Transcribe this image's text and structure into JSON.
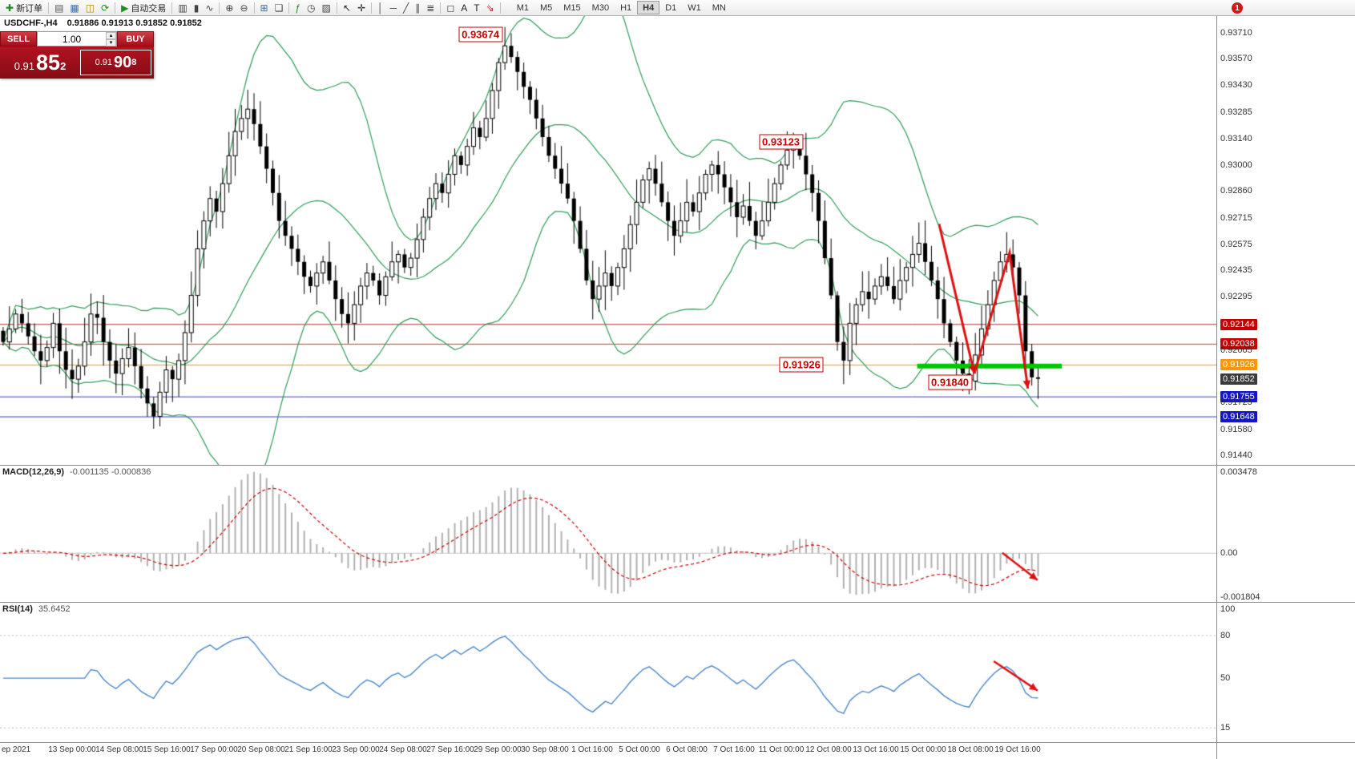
{
  "toolbar": {
    "buttons": [
      {
        "name": "new-order-button",
        "glyph": "✚",
        "color": "#1a8f1a",
        "label": "新订单"
      },
      {
        "sep": true
      },
      {
        "name": "charts-button",
        "glyph": "▤",
        "color": "#555555"
      },
      {
        "name": "profiles-button",
        "glyph": "▦",
        "color": "#3a6ea5"
      },
      {
        "name": "market-watch-button",
        "glyph": "◫",
        "color": "#b8860b"
      },
      {
        "name": "refresh-button",
        "glyph": "⟳",
        "color": "#1a8f1a"
      },
      {
        "sep": true
      },
      {
        "name": "autotrade-button",
        "glyph": "▶",
        "color": "#1a8f1a",
        "label": "自动交易"
      },
      {
        "sep": true
      },
      {
        "name": "bar-chart-button",
        "glyph": "▥",
        "color": "#444444"
      },
      {
        "name": "candlestick-button",
        "glyph": "▮",
        "color": "#444444"
      },
      {
        "name": "line-chart-button",
        "glyph": "∿",
        "color": "#444444"
      },
      {
        "sep": true
      },
      {
        "name": "zoom-in-button",
        "glyph": "⊕",
        "color": "#444444"
      },
      {
        "name": "zoom-out-button",
        "glyph": "⊖",
        "color": "#444444"
      },
      {
        "sep": true
      },
      {
        "name": "tile-windows-button",
        "glyph": "⊞",
        "color": "#3a6ea5"
      },
      {
        "name": "cascade-windows-button",
        "glyph": "❏",
        "color": "#444444"
      },
      {
        "sep": true
      },
      {
        "name": "indicators-button",
        "glyph": "ƒ",
        "color": "#1a8f1a"
      },
      {
        "name": "periods-button",
        "glyph": "◷",
        "color": "#444444"
      },
      {
        "name": "templates-button",
        "glyph": "▨",
        "color": "#444444"
      },
      {
        "sep": true
      },
      {
        "name": "cursor-button",
        "glyph": "↖",
        "color": "#222222"
      },
      {
        "name": "crosshair-button",
        "glyph": "✛",
        "color": "#222222"
      },
      {
        "sep": true
      },
      {
        "name": "vline-button",
        "glyph": "│",
        "color": "#444444"
      },
      {
        "name": "hline-button",
        "glyph": "─",
        "color": "#444444"
      },
      {
        "name": "trendline-button",
        "glyph": "╱",
        "color": "#444444"
      },
      {
        "name": "channel-button",
        "glyph": "∥",
        "color": "#444444"
      },
      {
        "name": "fibonacci-button",
        "glyph": "≣",
        "color": "#444444"
      },
      {
        "sep": true
      },
      {
        "name": "shapes-button",
        "glyph": "◻",
        "color": "#444444"
      },
      {
        "name": "text-button",
        "glyph": "A",
        "color": "#222222"
      },
      {
        "name": "label-button",
        "glyph": "T",
        "color": "#222222"
      },
      {
        "name": "arrows-button",
        "glyph": "⇘",
        "color": "#aa2222"
      },
      {
        "sep": true
      }
    ],
    "timeframes": [
      "M1",
      "M5",
      "M15",
      "M30",
      "H1",
      "H4",
      "D1",
      "W1",
      "MN"
    ],
    "active_timeframe": "H4",
    "badge": "1"
  },
  "chart": {
    "header": "USDCHF-,H4",
    "ohlc": "0.91886 0.91913 0.91852 0.91852",
    "trade_panel": {
      "sell_label": "SELL",
      "buy_label": "BUY",
      "lot": "1.00",
      "spin_up": "▴",
      "spin_down": "▾",
      "sell_price_prefix": "0.91",
      "sell_price_big": "85",
      "sell_price_sup": "2",
      "buy_price_prefix": "0.91",
      "buy_price_big": "90",
      "buy_price_sup": "8"
    },
    "price_range": {
      "min": 0.9139,
      "max": 0.938
    },
    "axis_labels": [
      {
        "text": "0.93710",
        "price": 0.9371
      },
      {
        "text": "0.93570",
        "price": 0.9357
      },
      {
        "text": "0.93430",
        "price": 0.9343
      },
      {
        "text": "0.93285",
        "price": 0.93285
      },
      {
        "text": "0.93140",
        "price": 0.9314
      },
      {
        "text": "0.93000",
        "price": 0.93
      },
      {
        "text": "0.92860",
        "price": 0.9286
      },
      {
        "text": "0.92715",
        "price": 0.92715
      },
      {
        "text": "0.92575",
        "price": 0.92575
      },
      {
        "text": "0.92435",
        "price": 0.92435
      },
      {
        "text": "0.92295",
        "price": 0.92295
      },
      {
        "text": "0.92144",
        "price": 0.92144,
        "bg": "#c40000"
      },
      {
        "text": "0.92038",
        "price": 0.92038,
        "bg": "#c40000"
      },
      {
        "text": "0.92005",
        "price": 0.92005
      },
      {
        "text": "0.91926",
        "price": 0.91926,
        "bg": "#ff9500"
      },
      {
        "text": "0.91852",
        "price": 0.91852,
        "bg": "#3c3c3c"
      },
      {
        "text": "0.91755",
        "price": 0.91755,
        "bg": "#1414cd"
      },
      {
        "text": "0.91725",
        "price": 0.91725
      },
      {
        "text": "0.91648",
        "price": 0.91648,
        "bg": "#1414cd"
      },
      {
        "text": "0.91580",
        "price": 0.9158
      },
      {
        "text": "0.91440",
        "price": 0.9144
      }
    ],
    "levels": [
      {
        "price": 0.92144,
        "color": "#a03030"
      },
      {
        "price": 0.92038,
        "color": "#cc3a3a"
      },
      {
        "price": 0.91926,
        "color": "#ff9500"
      },
      {
        "price": 0.91755,
        "color": "#3b3bd1"
      },
      {
        "price": 0.91648,
        "color": "#3b3bd1"
      }
    ],
    "green_segment": {
      "x1f": 0.754,
      "x2f": 0.873,
      "price": 0.9192,
      "color": "#00c800"
    },
    "annotations": [
      {
        "text": "0.93674",
        "xf": 0.395,
        "price": 0.937
      },
      {
        "text": "0.93123",
        "xf": 0.642,
        "price": 0.93125
      },
      {
        "text": "0.91926",
        "xf": 0.659,
        "price": 0.91928
      },
      {
        "text": "0.91840",
        "xf": 0.781,
        "price": 0.91835
      }
    ],
    "arrows": [
      {
        "pts": [
          [
            0.772,
            0.92684
          ],
          [
            0.801,
            0.9188
          ]
        ]
      },
      {
        "pts": [
          [
            0.801,
            0.9188
          ],
          [
            0.83,
            0.9253
          ],
          [
            0.845,
            0.918
          ]
        ]
      }
    ],
    "colors": {
      "bull": "#ffffff",
      "bear": "#000000",
      "wick": "#000000",
      "bollinger": "#2e9b57",
      "arrow": "#dd1111"
    }
  },
  "macd": {
    "label": "MACD(12,26,9)",
    "values": "-0.001135 -0.000836",
    "axis": [
      {
        "text": "0.003478",
        "v": 0.003478
      },
      {
        "text": "0.00",
        "v": 0
      },
      {
        "text": "-0.001804",
        "v": -0.001804
      }
    ],
    "range": {
      "min": -0.002,
      "max": 0.0036
    },
    "colors": {
      "histogram": "#b0b0b0",
      "signal": "#cc0000",
      "zero": "#c8c8c8"
    },
    "arrow": {
      "pts": [
        [
          0.824,
          0.64
        ],
        [
          0.853,
          0.84
        ]
      ]
    }
  },
  "rsi": {
    "label": "RSI(14)",
    "value": "35.6452",
    "axis": [
      {
        "text": "100",
        "v": 100
      },
      {
        "text": "80",
        "v": 80
      },
      {
        "text": "50",
        "v": 50
      },
      {
        "text": "15",
        "v": 15
      }
    ],
    "range": {
      "min": 5,
      "max": 103
    },
    "level_lines": [
      80,
      15
    ],
    "colors": {
      "line": "#4a86c8",
      "levels": "#bcbcbc"
    },
    "arrow": {
      "pts": [
        [
          0.817,
          0.42
        ],
        [
          0.853,
          0.63
        ]
      ]
    }
  },
  "time_axis": {
    "edge_label": "ep 2021",
    "labels": [
      "13 Sep 00:00",
      "14 Sep 08:00",
      "15 Sep 16:00",
      "17 Sep 00:00",
      "20 Sep 08:00",
      "21 Sep 16:00",
      "23 Sep 00:00",
      "24 Sep 08:00",
      "27 Sep 16:00",
      "29 Sep 00:00",
      "30 Sep 08:00",
      "1 Oct 16:00",
      "5 Oct 00:00",
      "6 Oct 08:00",
      "7 Oct 16:00",
      "11 Oct 00:00",
      "12 Oct 08:00",
      "13 Oct 16:00",
      "15 Oct 00:00",
      "18 Oct 08:00",
      "19 Oct 16:00"
    ]
  },
  "chart_data": {
    "type": "candlestick",
    "symbol": "USDCHF",
    "timeframe": "H4",
    "key_prices": {
      "high_label": 0.93674,
      "swing_label": 0.93123,
      "support_orange": 0.91926,
      "support_low": 0.9184,
      "last": 0.91852,
      "res1": 0.92144,
      "res2": 0.92038,
      "blue1": 0.91755,
      "blue2": 0.91648
    },
    "closes": [
      0.9205,
      0.9212,
      0.922,
      0.9215,
      0.9208,
      0.92,
      0.9195,
      0.9202,
      0.9215,
      0.92,
      0.919,
      0.9185,
      0.9192,
      0.9205,
      0.922,
      0.9218,
      0.9205,
      0.9195,
      0.9188,
      0.9196,
      0.9202,
      0.9192,
      0.918,
      0.9172,
      0.9165,
      0.9178,
      0.919,
      0.9185,
      0.9195,
      0.921,
      0.923,
      0.9255,
      0.927,
      0.9282,
      0.9275,
      0.929,
      0.9305,
      0.9318,
      0.9325,
      0.933,
      0.9322,
      0.931,
      0.9298,
      0.9285,
      0.927,
      0.9262,
      0.9255,
      0.9248,
      0.924,
      0.9235,
      0.9242,
      0.9248,
      0.9238,
      0.9228,
      0.922,
      0.9215,
      0.9225,
      0.9235,
      0.9242,
      0.9238,
      0.923,
      0.924,
      0.9248,
      0.9252,
      0.9245,
      0.925,
      0.926,
      0.9272,
      0.9282,
      0.929,
      0.9285,
      0.9295,
      0.9305,
      0.93,
      0.931,
      0.932,
      0.9315,
      0.9325,
      0.934,
      0.9355,
      0.9364,
      0.9358,
      0.935,
      0.9342,
      0.9335,
      0.9325,
      0.9315,
      0.9305,
      0.9298,
      0.929,
      0.9282,
      0.927,
      0.9255,
      0.9238,
      0.9228,
      0.9235,
      0.9242,
      0.9235,
      0.9245,
      0.9255,
      0.9268,
      0.928,
      0.9292,
      0.9298,
      0.929,
      0.928,
      0.927,
      0.9262,
      0.927,
      0.928,
      0.9275,
      0.9285,
      0.9295,
      0.93,
      0.9295,
      0.9288,
      0.928,
      0.9272,
      0.9278,
      0.927,
      0.9262,
      0.927,
      0.928,
      0.929,
      0.93,
      0.9308,
      0.9312,
      0.9305,
      0.9295,
      0.9285,
      0.927,
      0.925,
      0.923,
      0.9205,
      0.9195,
      0.9215,
      0.9225,
      0.9232,
      0.9228,
      0.9235,
      0.924,
      0.9235,
      0.9228,
      0.9238,
      0.9245,
      0.9252,
      0.9258,
      0.9248,
      0.9238,
      0.9228,
      0.9215,
      0.9205,
      0.9195,
      0.9188,
      0.9184,
      0.9198,
      0.9212,
      0.9225,
      0.9238,
      0.9248,
      0.9252,
      0.9245,
      0.923,
      0.92,
      0.9186,
      0.91852
    ],
    "indicators": {
      "bollinger": {
        "period": 20,
        "deviation": 2
      },
      "macd": [
        12,
        26,
        9
      ],
      "rsi": 14
    }
  }
}
